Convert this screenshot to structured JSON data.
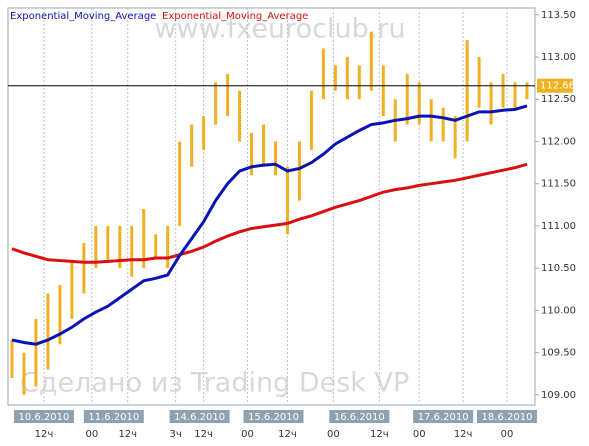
{
  "chart_data": {
    "type": "candlestick",
    "x": [
      0,
      3,
      6,
      9,
      12,
      15,
      18,
      21,
      24,
      27,
      30,
      33,
      36,
      39,
      42,
      45,
      48,
      51,
      54,
      57,
      60,
      63,
      66,
      69,
      72,
      75,
      78,
      81,
      84,
      87,
      90,
      93,
      96,
      99,
      102,
      105,
      108,
      111,
      114,
      117,
      120,
      123,
      126,
      129
    ],
    "high": [
      109.65,
      109.5,
      109.9,
      110.2,
      110.3,
      110.6,
      110.8,
      111.0,
      111.0,
      111.0,
      111.0,
      111.2,
      110.9,
      111.0,
      112.0,
      112.2,
      112.3,
      112.7,
      112.8,
      112.6,
      112.1,
      112.2,
      112.0,
      111.7,
      112.0,
      112.6,
      113.1,
      112.9,
      113.0,
      112.9,
      113.3,
      112.9,
      112.5,
      112.8,
      112.7,
      112.5,
      112.4,
      112.3,
      113.2,
      113.0,
      112.7,
      112.8,
      112.7,
      112.7
    ],
    "low": [
      109.2,
      109.0,
      109.1,
      109.3,
      109.6,
      109.9,
      110.2,
      110.5,
      110.6,
      110.5,
      110.4,
      110.5,
      110.6,
      110.5,
      111.0,
      111.7,
      111.9,
      112.2,
      112.3,
      112.0,
      111.6,
      111.7,
      111.6,
      110.9,
      111.3,
      111.9,
      112.5,
      112.6,
      112.5,
      112.5,
      112.6,
      112.3,
      112.0,
      112.2,
      112.2,
      112.0,
      112.0,
      111.8,
      112.0,
      112.4,
      112.2,
      112.4,
      112.4,
      112.5
    ],
    "color": "#f0b020",
    "series": [
      {
        "name": "Exponential_Moving_Average",
        "color": "#0a14b4",
        "values": [
          109.65,
          109.62,
          109.6,
          109.65,
          109.72,
          109.8,
          109.9,
          109.98,
          110.05,
          110.15,
          110.25,
          110.35,
          110.38,
          110.42,
          110.65,
          110.85,
          111.05,
          111.3,
          111.5,
          111.65,
          111.7,
          111.72,
          111.73,
          111.65,
          111.68,
          111.75,
          111.85,
          111.97,
          112.05,
          112.13,
          112.2,
          112.22,
          112.25,
          112.27,
          112.3,
          112.3,
          112.28,
          112.25,
          112.3,
          112.35,
          112.35,
          112.37,
          112.38,
          112.42
        ]
      },
      {
        "name": "Exponential_Moving_Average",
        "color": "#d81010",
        "values": [
          110.73,
          110.68,
          110.64,
          110.6,
          110.59,
          110.58,
          110.57,
          110.57,
          110.58,
          110.59,
          110.6,
          110.6,
          110.62,
          110.62,
          110.66,
          110.7,
          110.75,
          110.82,
          110.88,
          110.93,
          110.97,
          110.99,
          111.01,
          111.03,
          111.08,
          111.12,
          111.17,
          111.22,
          111.26,
          111.3,
          111.35,
          111.4,
          111.43,
          111.45,
          111.48,
          111.5,
          111.52,
          111.54,
          111.57,
          111.6,
          111.63,
          111.66,
          111.69,
          111.73
        ]
      }
    ],
    "last_price": 112.66,
    "xlim": [
      -1,
      131
    ],
    "ylim": [
      108.88,
      113.58
    ],
    "yticks": [
      {
        "value": 109,
        "label": "109.00"
      },
      {
        "value": 109.5,
        "label": "109.50"
      },
      {
        "value": 110,
        "label": "110.00"
      },
      {
        "value": 110.5,
        "label": "110.50"
      },
      {
        "value": 111,
        "label": "111.00"
      },
      {
        "value": 111.5,
        "label": "111.50"
      },
      {
        "value": 112,
        "label": "112.00"
      },
      {
        "value": 112.5,
        "label": "112.50"
      },
      {
        "value": 113,
        "label": "113.00"
      },
      {
        "value": 113.5,
        "label": "113.50"
      }
    ],
    "xticks": [
      {
        "value": 8,
        "label": "12ч"
      },
      {
        "value": 20,
        "label": "00"
      },
      {
        "value": 29,
        "label": "12ч"
      },
      {
        "value": 41,
        "label": "3ч"
      },
      {
        "value": 48,
        "label": "12ч"
      },
      {
        "value": 59,
        "label": "00"
      },
      {
        "value": 69,
        "label": "12ч"
      },
      {
        "value": 80.5,
        "label": "00"
      },
      {
        "value": 92,
        "label": "12ч"
      },
      {
        "value": 102,
        "label": "00"
      },
      {
        "value": 113,
        "label": "12ч"
      },
      {
        "value": 124,
        "label": "00"
      }
    ],
    "date_labels": [
      {
        "value": 8,
        "label": "10.6.2010"
      },
      {
        "value": 25.5,
        "label": "11.6.2010"
      },
      {
        "value": 47,
        "label": "14.6.2010"
      },
      {
        "value": 65.5,
        "label": "15.6.2010"
      },
      {
        "value": 87,
        "label": "16.6.2010"
      },
      {
        "value": 108,
        "label": "17.6.2010"
      },
      {
        "value": 130,
        "label": "18.6.2010"
      }
    ],
    "annotations": [
      "www.fxeuroclub.ru",
      "Сделано из Trading Desk VP"
    ],
    "grid": true
  }
}
